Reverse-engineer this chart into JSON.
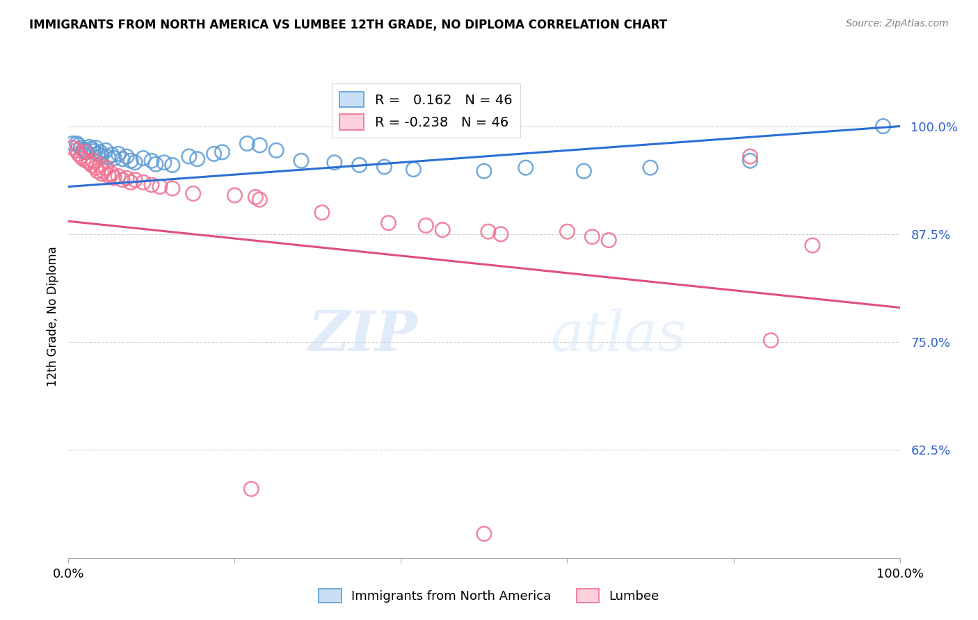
{
  "title": "IMMIGRANTS FROM NORTH AMERICA VS LUMBEE 12TH GRADE, NO DIPLOMA CORRELATION CHART",
  "source": "Source: ZipAtlas.com",
  "ylabel": "12th Grade, No Diploma",
  "yticks": [
    0.625,
    0.75,
    0.875,
    1.0
  ],
  "ytick_labels": [
    "62.5%",
    "75.0%",
    "87.5%",
    "100.0%"
  ],
  "xlim": [
    0.0,
    1.0
  ],
  "ylim": [
    0.5,
    1.06
  ],
  "legend_blue_r": "R =   0.162",
  "legend_blue_n": "N = 46",
  "legend_pink_r": "R = -0.238",
  "legend_pink_n": "N = 46",
  "blue_color": "#5b9bd5",
  "pink_color": "#f07090",
  "trend_blue_color": "#2b6fd4",
  "trend_pink_color": "#e0507a",
  "watermark_zip": "ZIP",
  "watermark_atlas": "atlas",
  "blue_scatter": [
    [
      0.005,
      0.98
    ],
    [
      0.01,
      0.98
    ],
    [
      0.012,
      0.978
    ],
    [
      0.015,
      0.975
    ],
    [
      0.018,
      0.973
    ],
    [
      0.02,
      0.972
    ],
    [
      0.022,
      0.97
    ],
    [
      0.025,
      0.976
    ],
    [
      0.028,
      0.974
    ],
    [
      0.03,
      0.971
    ],
    [
      0.033,
      0.975
    ],
    [
      0.035,
      0.968
    ],
    [
      0.038,
      0.97
    ],
    [
      0.04,
      0.966
    ],
    [
      0.045,
      0.972
    ],
    [
      0.048,
      0.964
    ],
    [
      0.052,
      0.967
    ],
    [
      0.055,
      0.963
    ],
    [
      0.06,
      0.968
    ],
    [
      0.065,
      0.962
    ],
    [
      0.07,
      0.965
    ],
    [
      0.075,
      0.96
    ],
    [
      0.08,
      0.958
    ],
    [
      0.09,
      0.963
    ],
    [
      0.1,
      0.96
    ],
    [
      0.105,
      0.956
    ],
    [
      0.115,
      0.958
    ],
    [
      0.125,
      0.955
    ],
    [
      0.145,
      0.965
    ],
    [
      0.155,
      0.962
    ],
    [
      0.175,
      0.968
    ],
    [
      0.185,
      0.97
    ],
    [
      0.215,
      0.98
    ],
    [
      0.23,
      0.978
    ],
    [
      0.25,
      0.972
    ],
    [
      0.28,
      0.96
    ],
    [
      0.32,
      0.958
    ],
    [
      0.35,
      0.955
    ],
    [
      0.38,
      0.953
    ],
    [
      0.415,
      0.95
    ],
    [
      0.5,
      0.948
    ],
    [
      0.55,
      0.952
    ],
    [
      0.62,
      0.948
    ],
    [
      0.7,
      0.952
    ],
    [
      0.82,
      0.96
    ],
    [
      0.98,
      1.0
    ]
  ],
  "pink_scatter": [
    [
      0.005,
      0.975
    ],
    [
      0.01,
      0.972
    ],
    [
      0.012,
      0.968
    ],
    [
      0.015,
      0.965
    ],
    [
      0.018,
      0.962
    ],
    [
      0.02,
      0.97
    ],
    [
      0.022,
      0.96
    ],
    [
      0.025,
      0.958
    ],
    [
      0.028,
      0.955
    ],
    [
      0.03,
      0.96
    ],
    [
      0.033,
      0.952
    ],
    [
      0.035,
      0.948
    ],
    [
      0.038,
      0.955
    ],
    [
      0.04,
      0.945
    ],
    [
      0.042,
      0.948
    ],
    [
      0.045,
      0.952
    ],
    [
      0.048,
      0.943
    ],
    [
      0.052,
      0.945
    ],
    [
      0.055,
      0.94
    ],
    [
      0.06,
      0.942
    ],
    [
      0.065,
      0.938
    ],
    [
      0.07,
      0.94
    ],
    [
      0.075,
      0.935
    ],
    [
      0.08,
      0.938
    ],
    [
      0.09,
      0.935
    ],
    [
      0.1,
      0.932
    ],
    [
      0.11,
      0.93
    ],
    [
      0.125,
      0.928
    ],
    [
      0.15,
      0.922
    ],
    [
      0.2,
      0.92
    ],
    [
      0.225,
      0.918
    ],
    [
      0.23,
      0.915
    ],
    [
      0.305,
      0.9
    ],
    [
      0.385,
      0.888
    ],
    [
      0.43,
      0.885
    ],
    [
      0.45,
      0.88
    ],
    [
      0.505,
      0.878
    ],
    [
      0.52,
      0.875
    ],
    [
      0.6,
      0.878
    ],
    [
      0.63,
      0.872
    ],
    [
      0.65,
      0.868
    ],
    [
      0.82,
      0.965
    ],
    [
      0.845,
      0.752
    ],
    [
      0.895,
      0.862
    ],
    [
      0.22,
      0.58
    ],
    [
      0.5,
      0.528
    ]
  ],
  "blue_trend": {
    "x_start": 0.0,
    "y_start": 0.93,
    "x_end": 1.0,
    "y_end": 1.0
  },
  "pink_trend": {
    "x_start": 0.0,
    "y_start": 0.89,
    "x_end": 1.0,
    "y_end": 0.79
  }
}
